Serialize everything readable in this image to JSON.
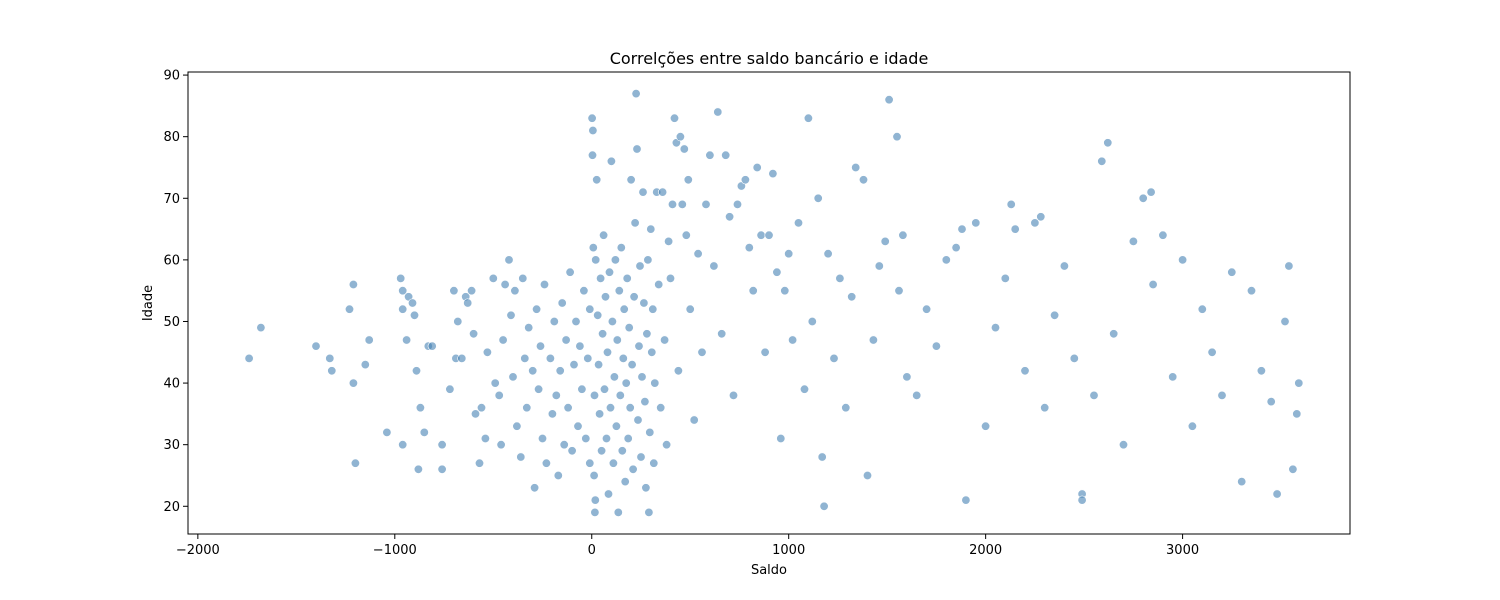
{
  "chart_data": {
    "type": "scatter",
    "title": "Correlções entre saldo bancário e idade",
    "xlabel": "Saldo",
    "ylabel": "Idade",
    "xlim": [
      -2050,
      3850
    ],
    "ylim": [
      15.5,
      90.5
    ],
    "xticks": [
      -2000,
      -1000,
      0,
      1000,
      2000,
      3000
    ],
    "yticks": [
      20,
      30,
      40,
      50,
      60,
      70,
      80,
      90
    ],
    "xtick_labels": [
      "−2000",
      "−1000",
      "0",
      "1000",
      "2000",
      "3000"
    ],
    "ytick_labels": [
      "20",
      "30",
      "40",
      "50",
      "60",
      "70",
      "80",
      "90"
    ],
    "grid": false,
    "marker_color": "#4682b4",
    "marker_alpha": 0.6,
    "series": [
      {
        "points": [
          [
            -1740,
            44
          ],
          [
            -1680,
            49
          ],
          [
            -1400,
            46
          ],
          [
            -1330,
            44
          ],
          [
            -1320,
            42
          ],
          [
            -1230,
            52
          ],
          [
            -1210,
            56
          ],
          [
            -1210,
            40
          ],
          [
            -1200,
            27
          ],
          [
            -1150,
            43
          ],
          [
            -1130,
            47
          ],
          [
            -1040,
            32
          ],
          [
            -970,
            57
          ],
          [
            -960,
            55
          ],
          [
            -960,
            52
          ],
          [
            -960,
            30
          ],
          [
            -940,
            47
          ],
          [
            -930,
            54
          ],
          [
            -910,
            53
          ],
          [
            -900,
            51
          ],
          [
            -890,
            42
          ],
          [
            -880,
            26
          ],
          [
            -870,
            36
          ],
          [
            -850,
            32
          ],
          [
            -830,
            46
          ],
          [
            -810,
            46
          ],
          [
            -760,
            30
          ],
          [
            -760,
            26
          ],
          [
            -720,
            39
          ],
          [
            -700,
            55
          ],
          [
            -690,
            44
          ],
          [
            -680,
            50
          ],
          [
            -660,
            44
          ],
          [
            -640,
            54
          ],
          [
            -630,
            53
          ],
          [
            -610,
            55
          ],
          [
            -600,
            48
          ],
          [
            -590,
            35
          ],
          [
            -570,
            27
          ],
          [
            -560,
            36
          ],
          [
            -540,
            31
          ],
          [
            -530,
            45
          ],
          [
            -500,
            57
          ],
          [
            -490,
            40
          ],
          [
            -470,
            38
          ],
          [
            -460,
            30
          ],
          [
            -450,
            47
          ],
          [
            -440,
            56
          ],
          [
            -420,
            60
          ],
          [
            -410,
            51
          ],
          [
            -400,
            41
          ],
          [
            -390,
            55
          ],
          [
            -380,
            33
          ],
          [
            -360,
            28
          ],
          [
            -350,
            57
          ],
          [
            -340,
            44
          ],
          [
            -330,
            36
          ],
          [
            -320,
            49
          ],
          [
            -300,
            42
          ],
          [
            -290,
            23
          ],
          [
            -280,
            52
          ],
          [
            -270,
            39
          ],
          [
            -260,
            46
          ],
          [
            -250,
            31
          ],
          [
            -240,
            56
          ],
          [
            -230,
            27
          ],
          [
            -210,
            44
          ],
          [
            -200,
            35
          ],
          [
            -190,
            50
          ],
          [
            -180,
            38
          ],
          [
            -170,
            25
          ],
          [
            -160,
            42
          ],
          [
            -150,
            53
          ],
          [
            -140,
            30
          ],
          [
            -130,
            47
          ],
          [
            -120,
            36
          ],
          [
            -110,
            58
          ],
          [
            -100,
            29
          ],
          [
            -90,
            43
          ],
          [
            -80,
            50
          ],
          [
            -70,
            33
          ],
          [
            -60,
            46
          ],
          [
            -50,
            39
          ],
          [
            -40,
            55
          ],
          [
            -30,
            31
          ],
          [
            -20,
            44
          ],
          [
            -10,
            52
          ],
          [
            -10,
            27
          ],
          [
            2,
            83
          ],
          [
            4,
            77
          ],
          [
            6,
            81
          ],
          [
            8,
            62
          ],
          [
            12,
            25
          ],
          [
            14,
            38
          ],
          [
            16,
            19
          ],
          [
            18,
            21
          ],
          [
            20,
            60
          ],
          [
            25,
            73
          ],
          [
            30,
            51
          ],
          [
            35,
            43
          ],
          [
            40,
            35
          ],
          [
            45,
            57
          ],
          [
            50,
            29
          ],
          [
            55,
            48
          ],
          [
            60,
            64
          ],
          [
            65,
            39
          ],
          [
            70,
            54
          ],
          [
            75,
            31
          ],
          [
            80,
            45
          ],
          [
            85,
            22
          ],
          [
            90,
            58
          ],
          [
            95,
            36
          ],
          [
            100,
            76
          ],
          [
            105,
            50
          ],
          [
            110,
            27
          ],
          [
            115,
            41
          ],
          [
            120,
            60
          ],
          [
            125,
            33
          ],
          [
            130,
            47
          ],
          [
            135,
            19
          ],
          [
            140,
            55
          ],
          [
            145,
            38
          ],
          [
            150,
            62
          ],
          [
            155,
            29
          ],
          [
            160,
            44
          ],
          [
            165,
            52
          ],
          [
            170,
            24
          ],
          [
            175,
            40
          ],
          [
            180,
            57
          ],
          [
            185,
            31
          ],
          [
            190,
            49
          ],
          [
            195,
            36
          ],
          [
            200,
            73
          ],
          [
            205,
            43
          ],
          [
            210,
            26
          ],
          [
            215,
            54
          ],
          [
            220,
            66
          ],
          [
            225,
            87
          ],
          [
            230,
            78
          ],
          [
            235,
            34
          ],
          [
            240,
            46
          ],
          [
            245,
            59
          ],
          [
            250,
            28
          ],
          [
            255,
            41
          ],
          [
            260,
            71
          ],
          [
            265,
            53
          ],
          [
            270,
            37
          ],
          [
            275,
            23
          ],
          [
            280,
            48
          ],
          [
            285,
            60
          ],
          [
            290,
            19
          ],
          [
            295,
            32
          ],
          [
            300,
            65
          ],
          [
            305,
            45
          ],
          [
            310,
            52
          ],
          [
            315,
            27
          ],
          [
            320,
            40
          ],
          [
            330,
            71
          ],
          [
            340,
            56
          ],
          [
            350,
            36
          ],
          [
            360,
            71
          ],
          [
            370,
            47
          ],
          [
            380,
            30
          ],
          [
            390,
            63
          ],
          [
            400,
            57
          ],
          [
            410,
            69
          ],
          [
            420,
            83
          ],
          [
            430,
            79
          ],
          [
            440,
            42
          ],
          [
            450,
            80
          ],
          [
            460,
            69
          ],
          [
            470,
            78
          ],
          [
            480,
            64
          ],
          [
            490,
            73
          ],
          [
            500,
            52
          ],
          [
            520,
            34
          ],
          [
            540,
            61
          ],
          [
            560,
            45
          ],
          [
            580,
            69
          ],
          [
            600,
            77
          ],
          [
            620,
            59
          ],
          [
            640,
            84
          ],
          [
            660,
            48
          ],
          [
            680,
            77
          ],
          [
            700,
            67
          ],
          [
            720,
            38
          ],
          [
            740,
            69
          ],
          [
            760,
            72
          ],
          [
            780,
            73
          ],
          [
            800,
            62
          ],
          [
            820,
            55
          ],
          [
            840,
            75
          ],
          [
            860,
            64
          ],
          [
            880,
            45
          ],
          [
            900,
            64
          ],
          [
            920,
            74
          ],
          [
            940,
            58
          ],
          [
            960,
            31
          ],
          [
            980,
            55
          ],
          [
            1000,
            61
          ],
          [
            1020,
            47
          ],
          [
            1050,
            66
          ],
          [
            1080,
            39
          ],
          [
            1100,
            83
          ],
          [
            1120,
            50
          ],
          [
            1150,
            70
          ],
          [
            1170,
            28
          ],
          [
            1180,
            20
          ],
          [
            1200,
            61
          ],
          [
            1230,
            44
          ],
          [
            1260,
            57
          ],
          [
            1290,
            36
          ],
          [
            1320,
            54
          ],
          [
            1340,
            75
          ],
          [
            1380,
            73
          ],
          [
            1400,
            25
          ],
          [
            1430,
            47
          ],
          [
            1460,
            59
          ],
          [
            1490,
            63
          ],
          [
            1510,
            86
          ],
          [
            1550,
            80
          ],
          [
            1560,
            55
          ],
          [
            1580,
            64
          ],
          [
            1600,
            41
          ],
          [
            1650,
            38
          ],
          [
            1700,
            52
          ],
          [
            1750,
            46
          ],
          [
            1800,
            60
          ],
          [
            1850,
            62
          ],
          [
            1880,
            65
          ],
          [
            1900,
            21
          ],
          [
            1950,
            66
          ],
          [
            2000,
            33
          ],
          [
            2050,
            49
          ],
          [
            2100,
            57
          ],
          [
            2130,
            69
          ],
          [
            2150,
            65
          ],
          [
            2200,
            42
          ],
          [
            2250,
            66
          ],
          [
            2280,
            67
          ],
          [
            2300,
            36
          ],
          [
            2350,
            51
          ],
          [
            2400,
            59
          ],
          [
            2450,
            44
          ],
          [
            2490,
            22
          ],
          [
            2490,
            21
          ],
          [
            2550,
            38
          ],
          [
            2590,
            76
          ],
          [
            2620,
            79
          ],
          [
            2650,
            48
          ],
          [
            2700,
            30
          ],
          [
            2750,
            63
          ],
          [
            2800,
            70
          ],
          [
            2840,
            71
          ],
          [
            2850,
            56
          ],
          [
            2900,
            64
          ],
          [
            2950,
            41
          ],
          [
            3000,
            60
          ],
          [
            3050,
            33
          ],
          [
            3100,
            52
          ],
          [
            3150,
            45
          ],
          [
            3200,
            38
          ],
          [
            3250,
            58
          ],
          [
            3300,
            24
          ],
          [
            3350,
            55
          ],
          [
            3400,
            42
          ],
          [
            3450,
            37
          ],
          [
            3480,
            22
          ],
          [
            3520,
            50
          ],
          [
            3540,
            59
          ],
          [
            3560,
            26
          ],
          [
            3580,
            35
          ],
          [
            3590,
            40
          ]
        ]
      }
    ]
  }
}
